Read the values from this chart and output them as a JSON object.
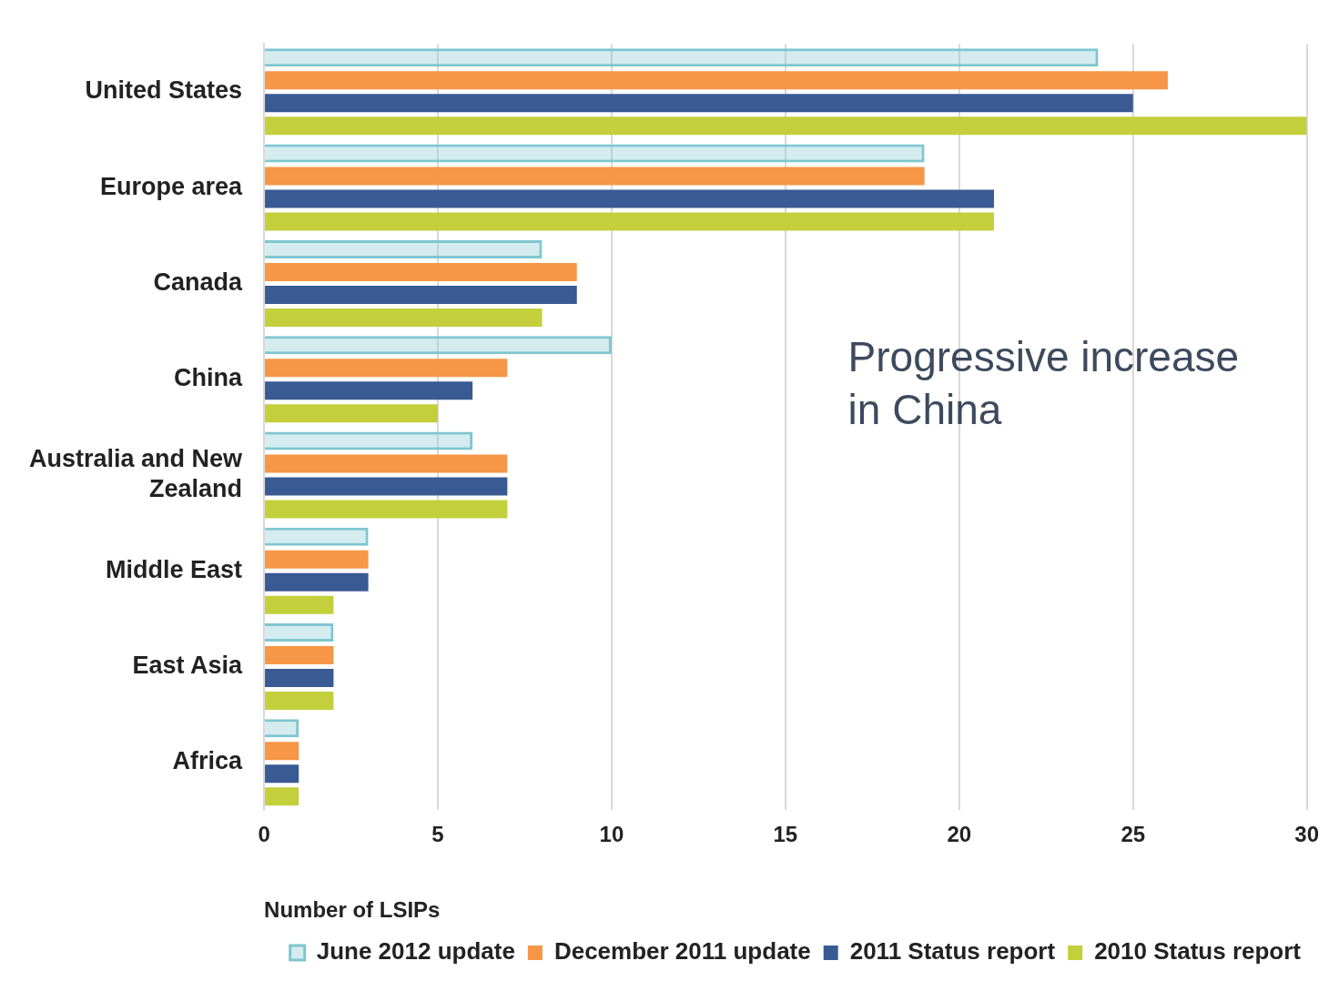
{
  "chart_data": {
    "type": "bar",
    "orientation": "horizontal",
    "xlabel": "Number of LSIPs",
    "categories": [
      "United States",
      "Europe area",
      "Canada",
      "China",
      "Australia and New Zealand",
      "Middle East",
      "East Asia",
      "Africa"
    ],
    "series": [
      {
        "name": "June 2012 update",
        "color": "#7fc6cf",
        "line_style": "dashed",
        "values": [
          24,
          19,
          8,
          10,
          6,
          3,
          2,
          1
        ]
      },
      {
        "name": "December 2011 update",
        "color": "#f79646",
        "values": [
          26,
          19,
          9,
          7,
          7,
          3,
          2,
          1
        ]
      },
      {
        "name": "2011 Status report",
        "color": "#3a5a94",
        "values": [
          25,
          21,
          9,
          6,
          7,
          3,
          2,
          1
        ]
      },
      {
        "name": "2010 Status report",
        "color": "#c4cf3c",
        "values": [
          30,
          21,
          8,
          5,
          7,
          2,
          2,
          1
        ]
      }
    ],
    "xlim": [
      0,
      30
    ],
    "xticks": [
      0,
      5,
      10,
      15,
      20,
      25,
      30
    ],
    "grid": "x",
    "legend": "bottom right",
    "annotations": [
      "Progressive increase in China"
    ]
  }
}
